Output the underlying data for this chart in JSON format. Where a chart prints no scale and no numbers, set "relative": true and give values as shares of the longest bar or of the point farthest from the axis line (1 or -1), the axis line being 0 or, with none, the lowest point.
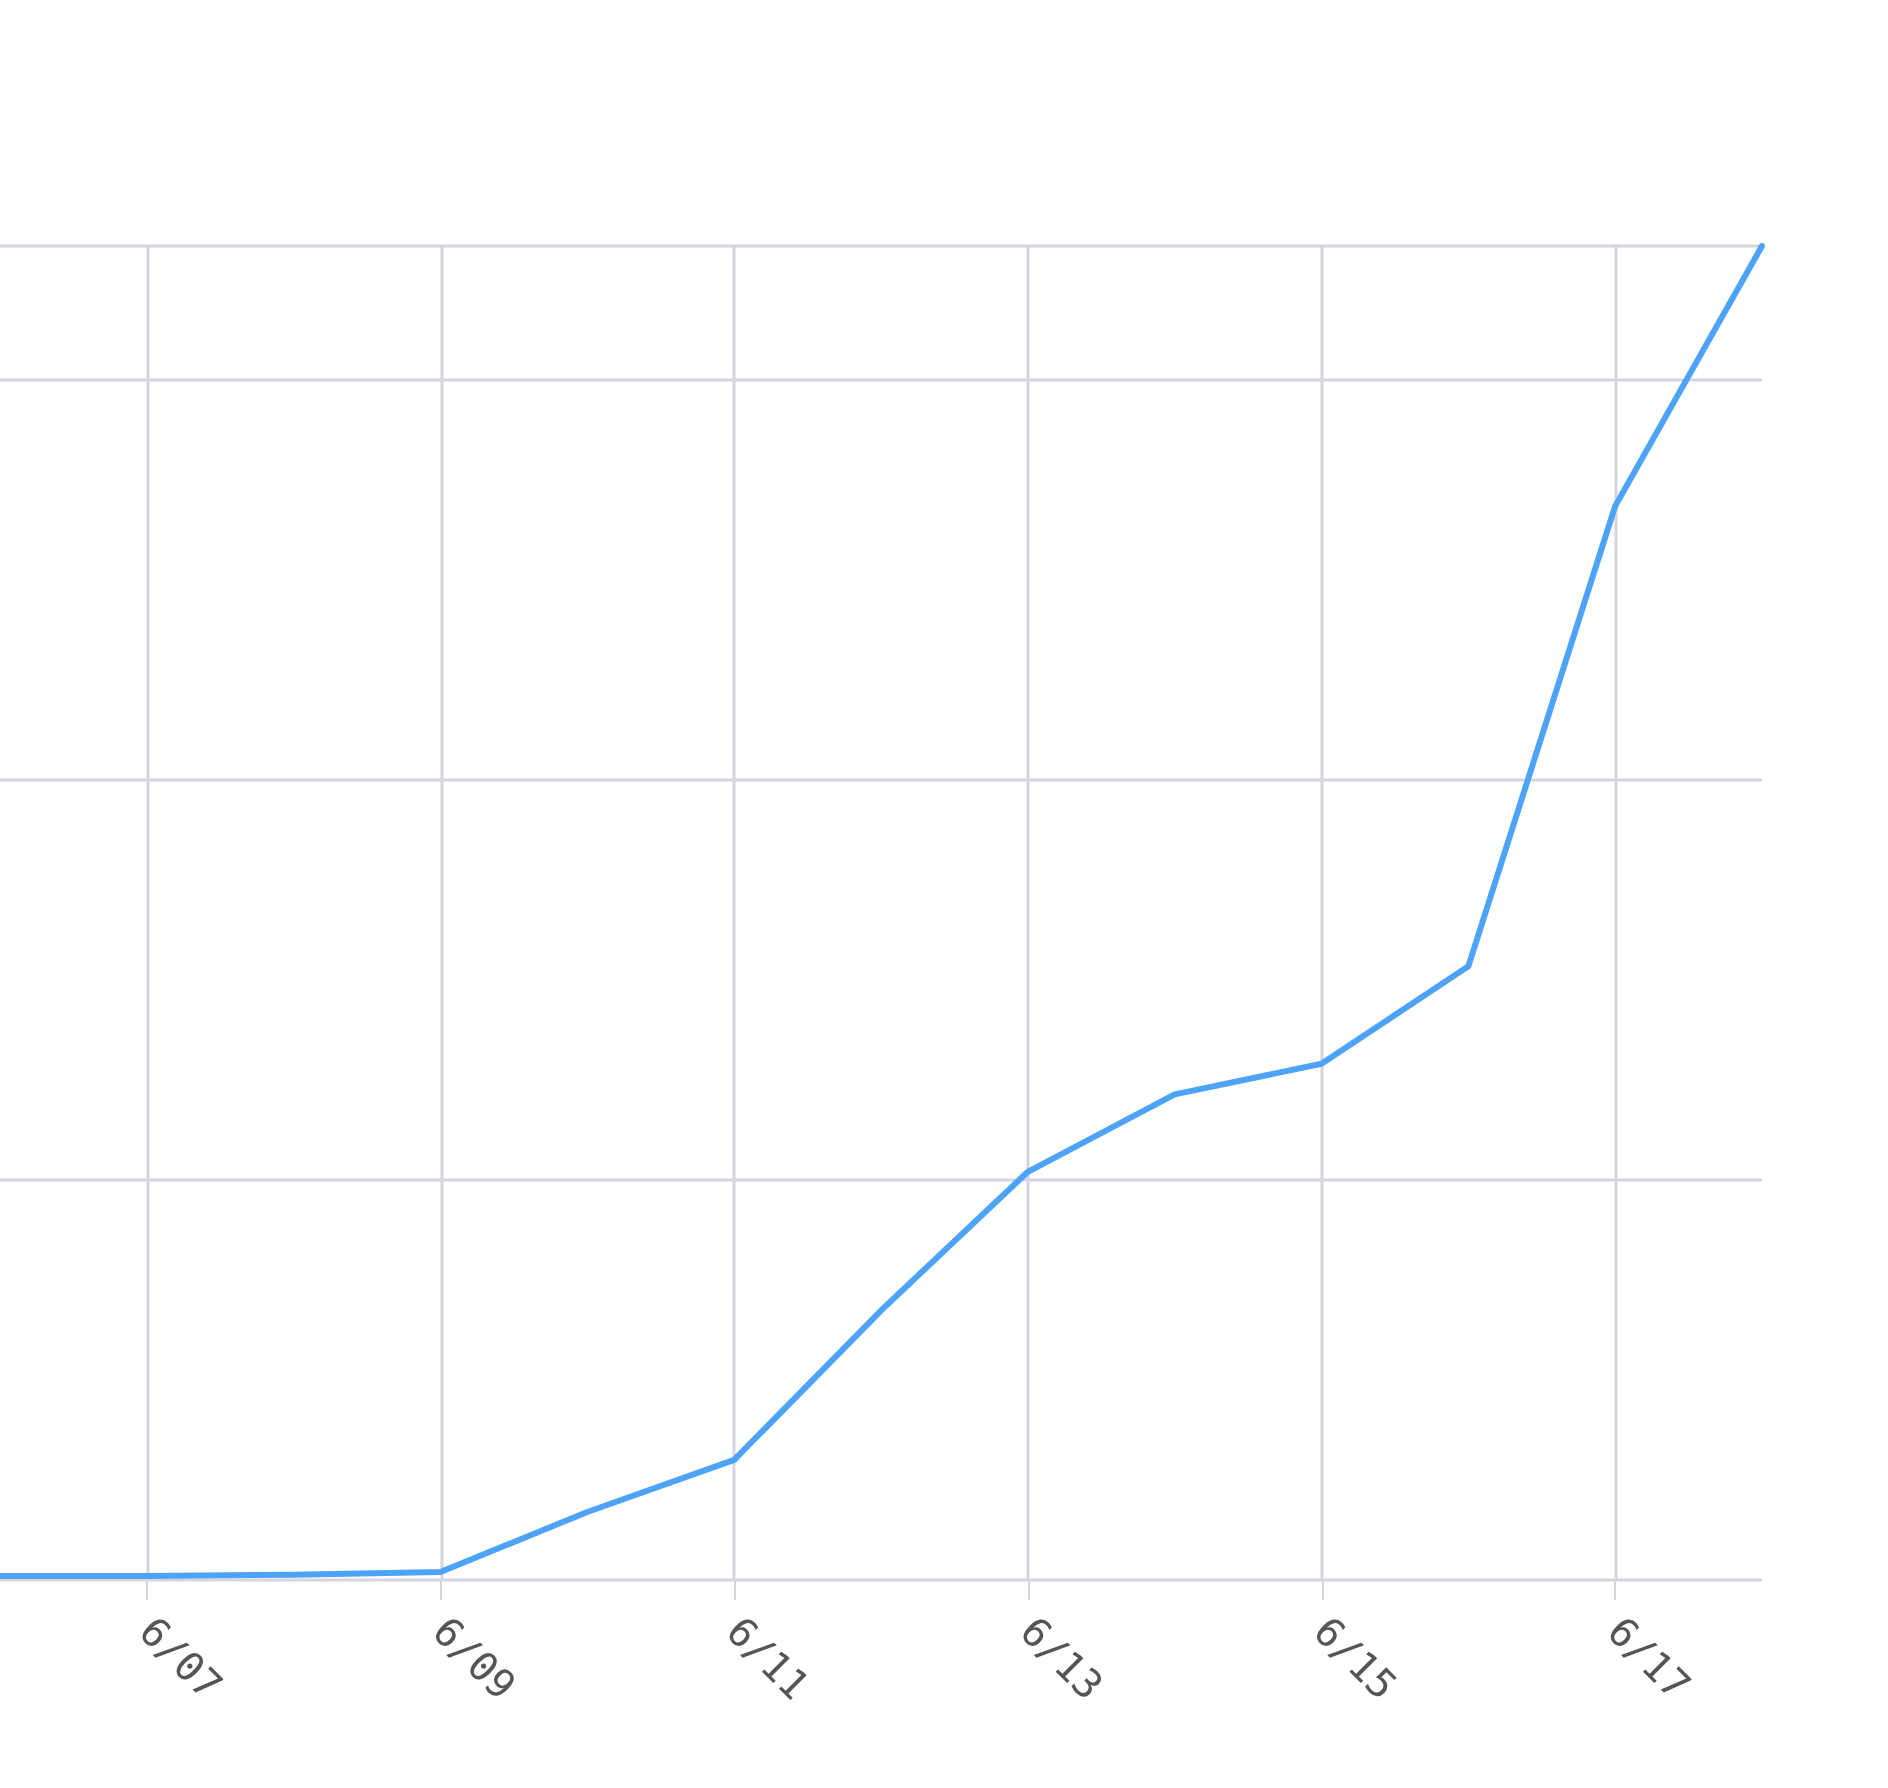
{
  "chart_data": {
    "type": "line",
    "relative": true,
    "x": [
      "--06-06",
      "--06-07",
      "--06-08",
      "--06-09",
      "--06-10",
      "--06-11",
      "--06-12",
      "--06-13",
      "--06-14",
      "--06-15",
      "--06-16",
      "--06-17",
      "--06-18"
    ],
    "values": [
      0.003,
      0.003,
      0.004,
      0.006,
      0.051,
      0.09,
      0.202,
      0.306,
      0.364,
      0.387,
      0.46,
      0.805,
      1
    ],
    "color": "#4da3f8",
    "xlim": [
      "--06-06",
      "--06-18"
    ],
    "xticks": [
      {
        "value": "--06-07",
        "label": "6/07"
      },
      {
        "value": "--06-09",
        "label": "6/09"
      },
      {
        "value": "--06-11",
        "label": "6/11"
      },
      {
        "value": "--06-13",
        "label": "6/13"
      },
      {
        "value": "--06-15",
        "label": "6/15"
      },
      {
        "value": "--06-17",
        "label": "6/17"
      }
    ],
    "grid": true,
    "marker": "none",
    "line_style": "solid"
  }
}
